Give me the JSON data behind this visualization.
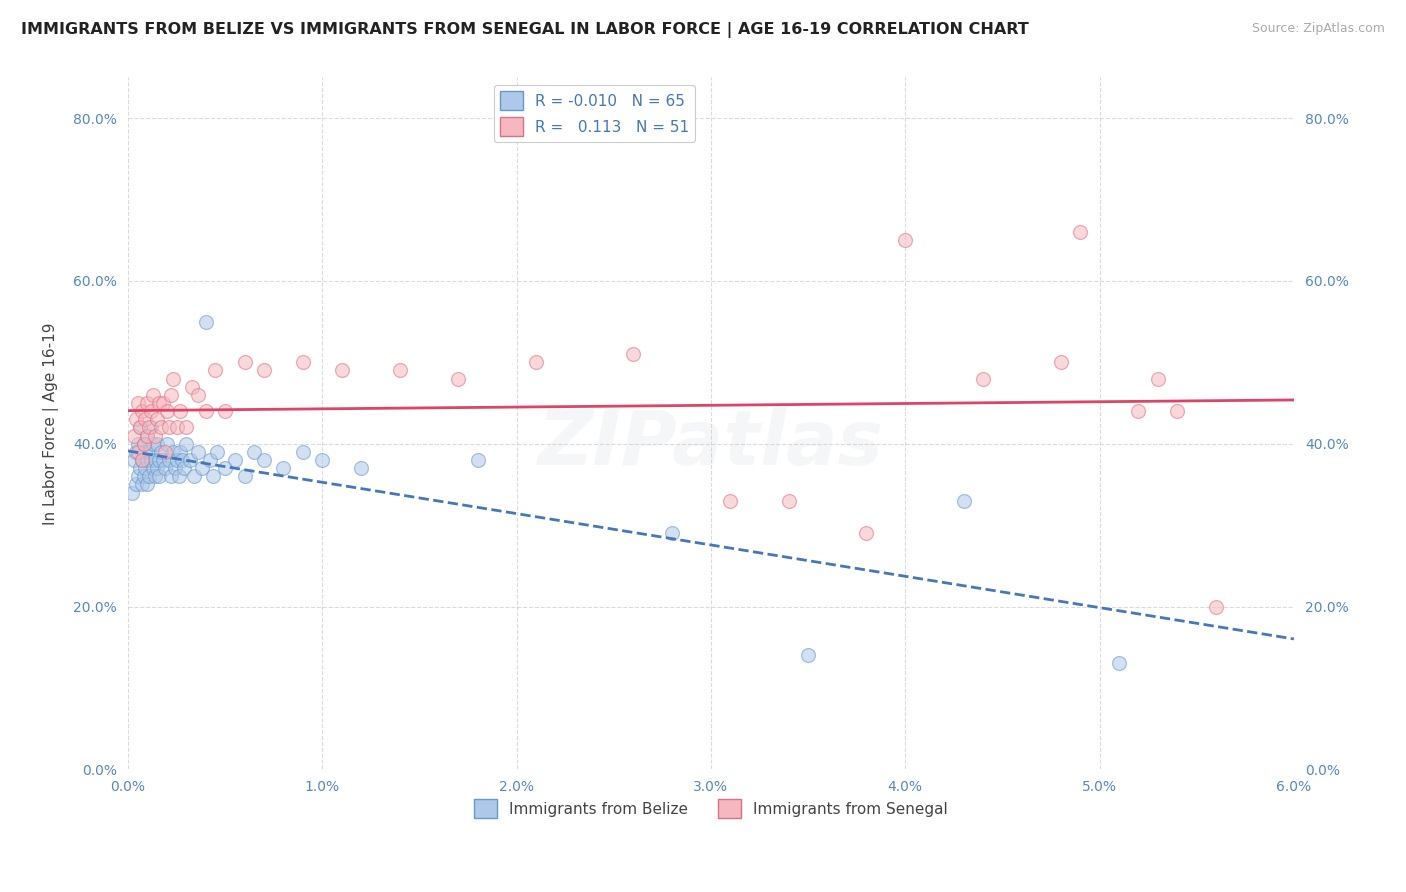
{
  "title": "IMMIGRANTS FROM BELIZE VS IMMIGRANTS FROM SENEGAL IN LABOR FORCE | AGE 16-19 CORRELATION CHART",
  "source": "Source: ZipAtlas.com",
  "xlabel_label": "Immigrants from Belize",
  "ylabel_label": "In Labor Force | Age 16-19",
  "watermark": "ZIPatlas",
  "xlim": [
    0.0,
    0.06
  ],
  "ylim": [
    0.0,
    0.85
  ],
  "xticks": [
    0.0,
    0.01,
    0.02,
    0.03,
    0.04,
    0.05,
    0.06
  ],
  "xticklabels": [
    "0.0%",
    "1.0%",
    "2.0%",
    "3.0%",
    "4.0%",
    "5.0%",
    "6.0%"
  ],
  "yticks": [
    0.0,
    0.2,
    0.4,
    0.6,
    0.8
  ],
  "yticklabels": [
    "0.0%",
    "20.0%",
    "40.0%",
    "60.0%",
    "80.0%"
  ],
  "belize_color": "#adc8e8",
  "senegal_color": "#f5b8c0",
  "belize_edge_color": "#6699cc",
  "senegal_edge_color": "#e07080",
  "trend_belize_color": "#4477bb",
  "trend_senegal_color": "#dd4466",
  "legend_R_belize": "-0.010",
  "legend_N_belize": "65",
  "legend_R_senegal": "0.113",
  "legend_N_senegal": "51",
  "belize_x": [
    0.0002,
    0.0003,
    0.0004,
    0.0004,
    0.0005,
    0.0005,
    0.0006,
    0.0006,
    0.0007,
    0.0007,
    0.0008,
    0.0008,
    0.0009,
    0.0009,
    0.001,
    0.001,
    0.001,
    0.0011,
    0.0011,
    0.0012,
    0.0012,
    0.0013,
    0.0013,
    0.0014,
    0.0014,
    0.0015,
    0.0015,
    0.0016,
    0.0016,
    0.0017,
    0.0018,
    0.0019,
    0.002,
    0.0021,
    0.0022,
    0.0023,
    0.0024,
    0.0025,
    0.0026,
    0.0027,
    0.0028,
    0.0029,
    0.003,
    0.0032,
    0.0034,
    0.0036,
    0.0038,
    0.004,
    0.0042,
    0.0044,
    0.0046,
    0.005,
    0.0055,
    0.006,
    0.0065,
    0.007,
    0.008,
    0.009,
    0.01,
    0.012,
    0.018,
    0.028,
    0.035,
    0.043,
    0.051
  ],
  "belize_y": [
    0.34,
    0.38,
    0.35,
    0.39,
    0.36,
    0.4,
    0.37,
    0.42,
    0.38,
    0.35,
    0.36,
    0.4,
    0.37,
    0.39,
    0.41,
    0.38,
    0.35,
    0.36,
    0.39,
    0.38,
    0.42,
    0.37,
    0.4,
    0.36,
    0.38,
    0.37,
    0.4,
    0.38,
    0.36,
    0.39,
    0.38,
    0.37,
    0.4,
    0.38,
    0.36,
    0.39,
    0.37,
    0.38,
    0.36,
    0.39,
    0.38,
    0.37,
    0.4,
    0.38,
    0.36,
    0.39,
    0.37,
    0.55,
    0.38,
    0.36,
    0.39,
    0.37,
    0.38,
    0.36,
    0.39,
    0.38,
    0.37,
    0.39,
    0.38,
    0.37,
    0.38,
    0.29,
    0.14,
    0.33,
    0.13
  ],
  "senegal_x": [
    0.0003,
    0.0004,
    0.0005,
    0.0005,
    0.0006,
    0.0007,
    0.0007,
    0.0008,
    0.0009,
    0.001,
    0.001,
    0.0011,
    0.0012,
    0.0013,
    0.0014,
    0.0015,
    0.0016,
    0.0017,
    0.0018,
    0.0019,
    0.002,
    0.0021,
    0.0022,
    0.0023,
    0.0025,
    0.0027,
    0.003,
    0.0033,
    0.0036,
    0.004,
    0.0045,
    0.005,
    0.006,
    0.007,
    0.009,
    0.011,
    0.014,
    0.017,
    0.021,
    0.026,
    0.031,
    0.034,
    0.038,
    0.04,
    0.044,
    0.048,
    0.049,
    0.052,
    0.053,
    0.054,
    0.056
  ],
  "senegal_y": [
    0.41,
    0.43,
    0.39,
    0.45,
    0.42,
    0.44,
    0.38,
    0.4,
    0.43,
    0.45,
    0.41,
    0.42,
    0.44,
    0.46,
    0.41,
    0.43,
    0.45,
    0.42,
    0.45,
    0.39,
    0.44,
    0.42,
    0.46,
    0.48,
    0.42,
    0.44,
    0.42,
    0.47,
    0.46,
    0.44,
    0.49,
    0.44,
    0.5,
    0.49,
    0.5,
    0.49,
    0.49,
    0.48,
    0.5,
    0.51,
    0.33,
    0.33,
    0.29,
    0.65,
    0.48,
    0.5,
    0.66,
    0.44,
    0.48,
    0.44,
    0.2
  ],
  "background_color": "#ffffff",
  "grid_color": "#cccccc",
  "title_fontsize": 11.5,
  "source_fontsize": 9,
  "axis_label_fontsize": 11,
  "tick_fontsize": 10,
  "legend_fontsize": 11,
  "marker_size": 100,
  "marker_alpha": 0.55,
  "watermark_alpha": 0.12,
  "watermark_fontsize": 55
}
